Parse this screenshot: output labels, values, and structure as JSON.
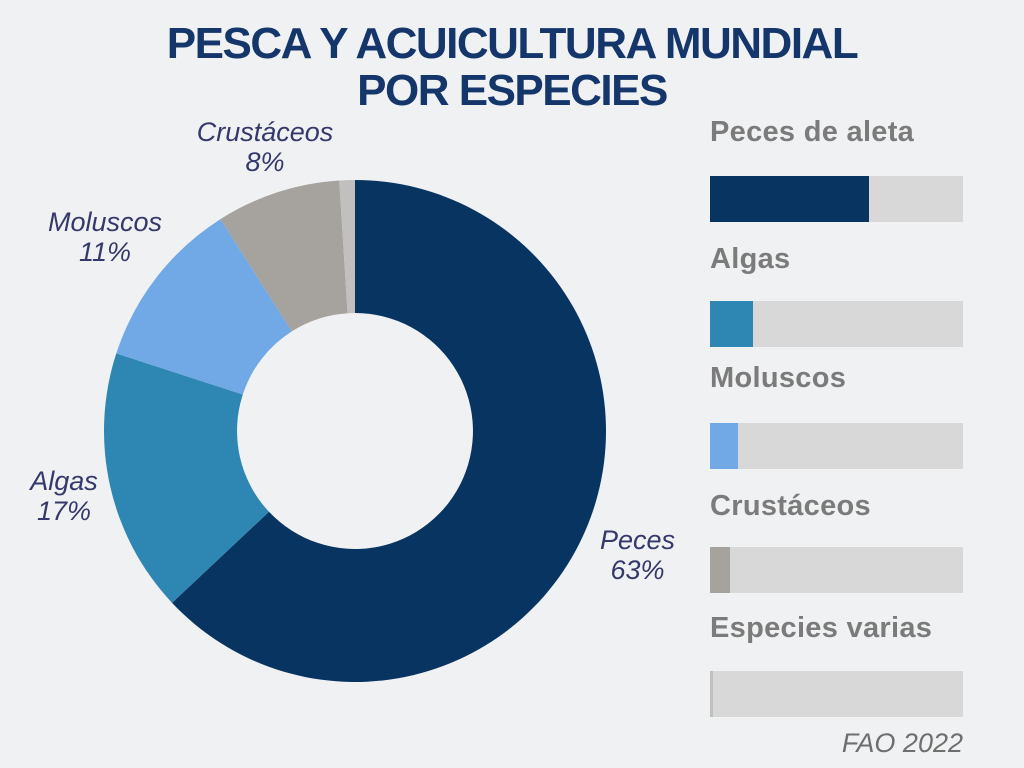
{
  "title": {
    "line1": "PESCA Y ACUICULTURA MUNDIAL",
    "line2": "POR ESPECIES"
  },
  "source": "FAO 2022",
  "colors": {
    "background": "#F0F1F2",
    "title_text": "#14366B",
    "slice_label_text": "#35386B",
    "legend_heading_text": "#7B7B7B",
    "legend_bar_track": "#D9D8D8",
    "source_text": "#6E6E6E"
  },
  "chart_data": {
    "type": "pie",
    "style": "donut",
    "title": "PESCA Y ACUICULTURA MUNDIAL POR ESPECIES",
    "direction": "clockwise",
    "start_angle_deg": 0,
    "inner_radius_ratio": 0.47,
    "segments": [
      {
        "label": "Peces",
        "legend_label": "Peces de aleta",
        "value_pct": 63,
        "color": "#083462"
      },
      {
        "label": "Algas",
        "legend_label": "Algas",
        "value_pct": 17,
        "color": "#2D87B2"
      },
      {
        "label": "Moluscos",
        "legend_label": "Moluscos",
        "value_pct": 11,
        "color": "#70A9E5"
      },
      {
        "label": "Crustáceos",
        "legend_label": "Crustáceos",
        "value_pct": 8,
        "color": "#A6A29D"
      },
      {
        "label": "Especies varias",
        "legend_label": "Especies varias",
        "value_pct": 1,
        "color": "#C2BFBF"
      }
    ],
    "slice_labels": [
      {
        "name": "Crustáceos",
        "pct": "8%"
      },
      {
        "name": "Moluscos",
        "pct": "11%"
      },
      {
        "name": "Algas",
        "pct": "17%"
      },
      {
        "name": "Peces",
        "pct": "63%"
      }
    ],
    "legend_position": "right",
    "source": "FAO 2022"
  }
}
